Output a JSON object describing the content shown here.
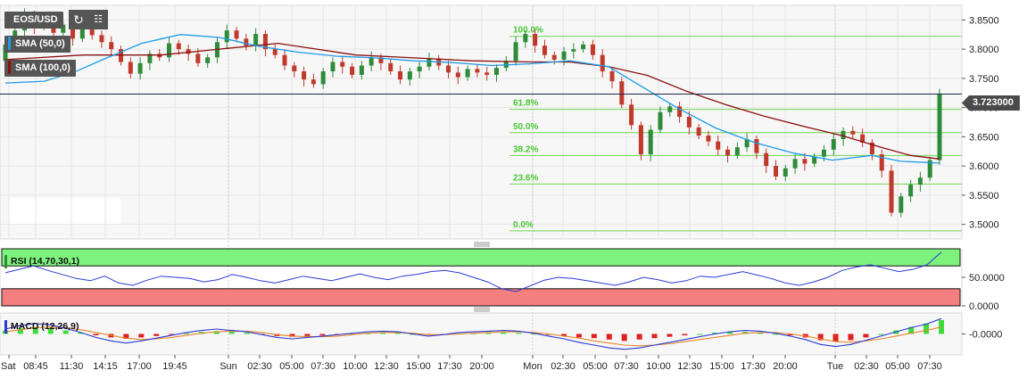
{
  "header": {
    "symbol": "EOS/USD"
  },
  "icons": {
    "refresh": "refresh-icon",
    "settings": "calendar-settings-icon"
  },
  "indicators": {
    "sma50": "SMA (50,0)",
    "sma100": "SMA (100,0)",
    "rsi": "RSI (14,70,30,1)",
    "macd": "MACD (12,26,9)"
  },
  "current_price": "3.723000",
  "colors": {
    "sma50": "#1e9be6",
    "sma100": "#8b0e0e",
    "up": "#2e8b3a",
    "down": "#c0392b",
    "fib": "#6fd650",
    "rsi_over": "#7df27d",
    "rsi_under": "#f47f7f"
  },
  "chart_data": [
    {
      "type": "candlestick",
      "title": "EOS/USD",
      "y_ticks": [
        "3.8500",
        "3.8000",
        "3.7500",
        "3.7000",
        "3.6500",
        "3.6000",
        "3.5500",
        "3.5000"
      ],
      "ylim": [
        3.475,
        3.875
      ],
      "x_ticks": [
        "Sat",
        "08:45",
        "11:30",
        "14:15",
        "17:00",
        "19:45",
        "Sun",
        "02:30",
        "05:00",
        "07:30",
        "10:00",
        "12:30",
        "15:00",
        "17:30",
        "20:00",
        "Mon",
        "02:30",
        "05:00",
        "07:30",
        "10:00",
        "12:30",
        "15:00",
        "17:30",
        "20:00",
        "Tue",
        "02:30",
        "05:00",
        "07:30"
      ],
      "fibonacci": [
        {
          "label": "100.0%",
          "value": 3.822
        },
        {
          "label": "61.8%",
          "value": 3.697
        },
        {
          "label": "50.0%",
          "value": 3.657
        },
        {
          "label": "38.2%",
          "value": 3.618
        },
        {
          "label": "23.6%",
          "value": 3.569
        },
        {
          "label": "0.0%",
          "value": 3.489
        }
      ],
      "current_price": 3.723,
      "series": [
        {
          "name": "SMA (50,0)",
          "points": [
            [
              0,
              3.742
            ],
            [
              4,
              3.745
            ],
            [
              7,
              3.76
            ],
            [
              10,
              3.782
            ],
            [
              14,
              3.81
            ],
            [
              18,
              3.825
            ],
            [
              22,
              3.82
            ],
            [
              26,
              3.805
            ],
            [
              30,
              3.795
            ],
            [
              34,
              3.788
            ],
            [
              38,
              3.785
            ],
            [
              42,
              3.78
            ],
            [
              46,
              3.777
            ],
            [
              50,
              3.772
            ],
            [
              54,
              3.775
            ],
            [
              58,
              3.78
            ],
            [
              62,
              3.77
            ],
            [
              65,
              3.74
            ],
            [
              69,
              3.7
            ],
            [
              73,
              3.665
            ],
            [
              77,
              3.64
            ],
            [
              81,
              3.622
            ],
            [
              85,
              3.61
            ],
            [
              89,
              3.618
            ],
            [
              92,
              3.608
            ],
            [
              96,
              3.605
            ]
          ]
        },
        {
          "name": "SMA (100,0)",
          "points": [
            [
              0,
              3.782
            ],
            [
              8,
              3.79
            ],
            [
              16,
              3.79
            ],
            [
              22,
              3.8
            ],
            [
              28,
              3.81
            ],
            [
              32,
              3.8
            ],
            [
              36,
              3.79
            ],
            [
              42,
              3.785
            ],
            [
              48,
              3.78
            ],
            [
              54,
              3.778
            ],
            [
              58,
              3.778
            ],
            [
              62,
              3.77
            ],
            [
              66,
              3.755
            ],
            [
              70,
              3.728
            ],
            [
              74,
              3.705
            ],
            [
              78,
              3.685
            ],
            [
              82,
              3.668
            ],
            [
              86,
              3.652
            ],
            [
              90,
              3.632
            ],
            [
              93,
              3.618
            ],
            [
              96,
              3.612
            ]
          ]
        }
      ],
      "candles": [
        [
          3.78,
          3.808
        ],
        [
          3.808,
          3.832
        ],
        [
          3.832,
          3.86
        ],
        [
          3.86,
          3.838
        ],
        [
          3.838,
          3.852
        ],
        [
          3.852,
          3.828
        ],
        [
          3.828,
          3.842
        ],
        [
          3.842,
          3.818
        ],
        [
          3.818,
          3.838
        ],
        [
          3.838,
          3.824
        ],
        [
          3.824,
          3.812
        ],
        [
          3.812,
          3.8
        ],
        [
          3.8,
          3.778
        ],
        [
          3.778,
          3.758
        ],
        [
          3.758,
          3.776
        ],
        [
          3.776,
          3.792
        ],
        [
          3.792,
          3.786
        ],
        [
          3.786,
          3.81
        ],
        [
          3.81,
          3.8
        ],
        [
          3.8,
          3.792
        ],
        [
          3.792,
          3.776
        ],
        [
          3.776,
          3.786
        ],
        [
          3.786,
          3.812
        ],
        [
          3.812,
          3.832
        ],
        [
          3.832,
          3.818
        ],
        [
          3.818,
          3.806
        ],
        [
          3.806,
          3.826
        ],
        [
          3.826,
          3.8
        ],
        [
          3.8,
          3.79
        ],
        [
          3.79,
          3.772
        ],
        [
          3.772,
          3.762
        ],
        [
          3.762,
          3.748
        ],
        [
          3.748,
          3.74
        ],
        [
          3.74,
          3.762
        ],
        [
          3.762,
          3.778
        ],
        [
          3.778,
          3.77
        ],
        [
          3.77,
          3.756
        ],
        [
          3.756,
          3.772
        ],
        [
          3.772,
          3.786
        ],
        [
          3.786,
          3.776
        ],
        [
          3.776,
          3.762
        ],
        [
          3.762,
          3.748
        ],
        [
          3.748,
          3.762
        ],
        [
          3.762,
          3.77
        ],
        [
          3.77,
          3.784
        ],
        [
          3.784,
          3.772
        ],
        [
          3.772,
          3.76
        ],
        [
          3.76,
          3.752
        ],
        [
          3.752,
          3.766
        ],
        [
          3.766,
          3.76
        ],
        [
          3.76,
          3.756
        ],
        [
          3.756,
          3.768
        ],
        [
          3.768,
          3.78
        ],
        [
          3.78,
          3.812
        ],
        [
          3.812,
          3.826
        ],
        [
          3.826,
          3.806
        ],
        [
          3.806,
          3.79
        ],
        [
          3.79,
          3.782
        ],
        [
          3.782,
          3.796
        ],
        [
          3.796,
          3.8
        ],
        [
          3.8,
          3.808
        ],
        [
          3.808,
          3.79
        ],
        [
          3.79,
          3.762
        ],
        [
          3.762,
          3.745
        ],
        [
          3.745,
          3.705
        ],
        [
          3.705,
          3.67
        ],
        [
          3.67,
          3.62
        ],
        [
          3.62,
          3.662
        ],
        [
          3.662,
          3.692
        ],
        [
          3.692,
          3.702
        ],
        [
          3.702,
          3.684
        ],
        [
          3.684,
          3.666
        ],
        [
          3.666,
          3.652
        ],
        [
          3.652,
          3.642
        ],
        [
          3.642,
          3.628
        ],
        [
          3.628,
          3.618
        ],
        [
          3.618,
          3.632
        ],
        [
          3.632,
          3.646
        ],
        [
          3.646,
          3.622
        ],
        [
          3.622,
          3.6
        ],
        [
          3.6,
          3.582
        ],
        [
          3.582,
          3.596
        ],
        [
          3.596,
          3.612
        ],
        [
          3.612,
          3.604
        ],
        [
          3.604,
          3.616
        ],
        [
          3.616,
          3.628
        ],
        [
          3.628,
          3.646
        ],
        [
          3.646,
          3.66
        ],
        [
          3.66,
          3.654
        ],
        [
          3.654,
          3.64
        ],
        [
          3.64,
          3.62
        ],
        [
          3.62,
          3.592
        ],
        [
          3.592,
          3.52
        ],
        [
          3.52,
          3.548
        ],
        [
          3.548,
          3.568
        ],
        [
          3.568,
          3.58
        ],
        [
          3.58,
          3.61
        ],
        [
          3.61,
          3.724
        ]
      ]
    },
    {
      "type": "line",
      "title": "RSI (14,70,30,1)",
      "y_ticks": [
        "50.0000",
        "0.0000"
      ],
      "ylim": [
        0,
        100
      ],
      "overbought": 70,
      "oversold": 30,
      "series": [
        {
          "name": "RSI",
          "values": [
            58,
            64,
            70,
            62,
            55,
            48,
            44,
            52,
            40,
            36,
            45,
            52,
            50,
            48,
            42,
            46,
            55,
            50,
            44,
            40,
            46,
            52,
            48,
            44,
            50,
            56,
            50,
            46,
            52,
            55,
            60,
            62,
            58,
            50,
            42,
            30,
            25,
            35,
            45,
            50,
            48,
            44,
            40,
            36,
            42,
            50,
            46,
            40,
            44,
            52,
            50,
            55,
            60,
            54,
            48,
            40,
            36,
            42,
            50,
            62,
            68,
            72,
            66,
            60,
            64,
            72,
            94
          ]
        }
      ]
    },
    {
      "type": "bar",
      "title": "MACD (12,26,9)",
      "y_ticks": [
        "-0.0000"
      ],
      "ylim": [
        -0.06,
        0.06
      ],
      "series": [
        {
          "name": "histogram",
          "values": [
            0.01,
            0.016,
            0.02,
            0.016,
            0.01,
            0.004,
            -0.004,
            -0.01,
            -0.014,
            -0.01,
            -0.006,
            -0.002,
            0.002,
            0.006,
            0.008,
            0.006,
            0.004,
            -0.002,
            -0.006,
            -0.008,
            -0.006,
            -0.004,
            -0.002,
            0.0,
            0.002,
            0.004,
            0.003,
            0.0,
            -0.002,
            -0.001,
            0.001,
            0.002,
            0.003,
            0.004,
            0.003,
            0.001,
            -0.002,
            -0.006,
            -0.01,
            -0.012,
            -0.016,
            -0.02,
            -0.016,
            -0.012,
            -0.008,
            -0.004,
            0.0,
            0.004,
            0.006,
            0.006,
            0.004,
            0.0,
            -0.004,
            -0.01,
            -0.018,
            -0.022,
            -0.018,
            -0.01,
            0.0,
            0.01,
            0.02,
            0.03,
            0.04
          ]
        },
        {
          "name": "macd",
          "values": [
            0.014,
            0.024,
            0.03,
            0.026,
            0.016,
            0.004,
            -0.01,
            -0.02,
            -0.026,
            -0.02,
            -0.012,
            -0.004,
            0.004,
            0.01,
            0.014,
            0.01,
            0.006,
            -0.002,
            -0.01,
            -0.014,
            -0.01,
            -0.006,
            -0.002,
            0.002,
            0.006,
            0.008,
            0.006,
            0.0,
            -0.006,
            -0.002,
            0.004,
            0.006,
            0.008,
            0.01,
            0.008,
            0.002,
            -0.006,
            -0.014,
            -0.024,
            -0.032,
            -0.04,
            -0.044,
            -0.04,
            -0.032,
            -0.024,
            -0.016,
            -0.008,
            0.0,
            0.006,
            0.01,
            0.008,
            0.002,
            -0.006,
            -0.016,
            -0.03,
            -0.036,
            -0.03,
            -0.018,
            -0.006,
            0.006,
            0.018,
            0.028,
            0.044
          ]
        },
        {
          "name": "signal",
          "values": [
            0.006,
            0.012,
            0.018,
            0.02,
            0.018,
            0.012,
            0.004,
            -0.004,
            -0.012,
            -0.016,
            -0.014,
            -0.01,
            -0.004,
            0.002,
            0.006,
            0.008,
            0.008,
            0.004,
            -0.002,
            -0.006,
            -0.008,
            -0.008,
            -0.006,
            -0.002,
            0.002,
            0.004,
            0.004,
            0.002,
            -0.002,
            -0.002,
            0.0,
            0.002,
            0.004,
            0.006,
            0.006,
            0.004,
            0.0,
            -0.006,
            -0.012,
            -0.02,
            -0.026,
            -0.032,
            -0.034,
            -0.032,
            -0.028,
            -0.022,
            -0.016,
            -0.01,
            -0.004,
            0.002,
            0.004,
            0.004,
            0.0,
            -0.006,
            -0.014,
            -0.022,
            -0.024,
            -0.02,
            -0.014,
            -0.006,
            0.002,
            0.01,
            0.02
          ]
        }
      ]
    }
  ]
}
